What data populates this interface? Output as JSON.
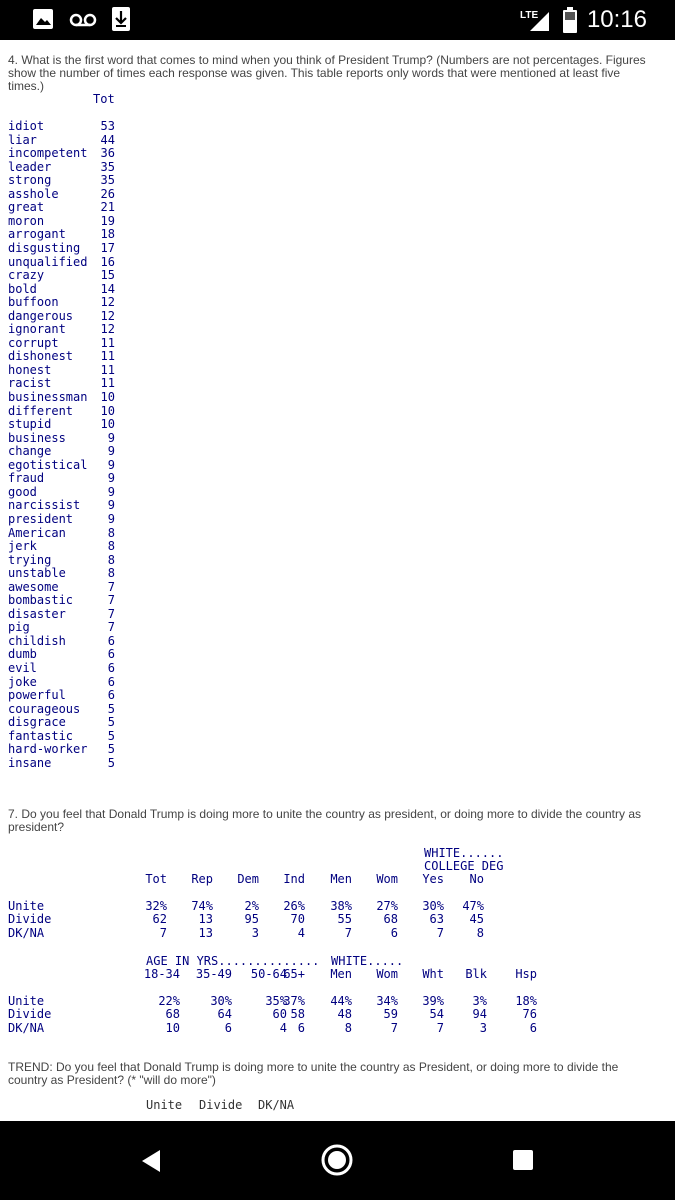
{
  "status_bar": {
    "time": "10:16",
    "network": "LTE",
    "icons": [
      "image-icon",
      "voicemail-icon",
      "download-icon",
      "signal-icon",
      "battery-icon"
    ]
  },
  "q4": {
    "text": "4. What is the first word that comes to mind when you think of President Trump? (Numbers are not percentages. Figures show the number of times each response was given. This table reports only words that were mentioned at least five times.)",
    "header": "Tot",
    "rows": [
      {
        "word": "idiot",
        "count": "53"
      },
      {
        "word": "liar",
        "count": "44"
      },
      {
        "word": "incompetent",
        "count": "36"
      },
      {
        "word": "leader",
        "count": "35"
      },
      {
        "word": "strong",
        "count": "35"
      },
      {
        "word": "asshole",
        "count": "26"
      },
      {
        "word": "great",
        "count": "21"
      },
      {
        "word": "moron",
        "count": "19"
      },
      {
        "word": "arrogant",
        "count": "18"
      },
      {
        "word": "disgusting",
        "count": "17"
      },
      {
        "word": "unqualified",
        "count": "16"
      },
      {
        "word": "crazy",
        "count": "15"
      },
      {
        "word": "bold",
        "count": "14"
      },
      {
        "word": "buffoon",
        "count": "12"
      },
      {
        "word": "dangerous",
        "count": "12"
      },
      {
        "word": "ignorant",
        "count": "12"
      },
      {
        "word": "corrupt",
        "count": "11"
      },
      {
        "word": "dishonest",
        "count": "11"
      },
      {
        "word": "honest",
        "count": "11"
      },
      {
        "word": "racist",
        "count": "11"
      },
      {
        "word": "businessman",
        "count": "10"
      },
      {
        "word": "different",
        "count": "10"
      },
      {
        "word": "stupid",
        "count": "10"
      },
      {
        "word": "business",
        "count": "9"
      },
      {
        "word": "change",
        "count": "9"
      },
      {
        "word": "egotistical",
        "count": "9"
      },
      {
        "word": "fraud",
        "count": "9"
      },
      {
        "word": "good",
        "count": "9"
      },
      {
        "word": "narcissist",
        "count": "9"
      },
      {
        "word": "president",
        "count": "9"
      },
      {
        "word": "American",
        "count": "8"
      },
      {
        "word": "jerk",
        "count": "8"
      },
      {
        "word": "trying",
        "count": "8"
      },
      {
        "word": "unstable",
        "count": "8"
      },
      {
        "word": "awesome",
        "count": "7"
      },
      {
        "word": "bombastic",
        "count": "7"
      },
      {
        "word": "disaster",
        "count": "7"
      },
      {
        "word": "pig",
        "count": "7"
      },
      {
        "word": "childish",
        "count": "6"
      },
      {
        "word": "dumb",
        "count": "6"
      },
      {
        "word": "evil",
        "count": "6"
      },
      {
        "word": "joke",
        "count": "6"
      },
      {
        "word": "powerful",
        "count": "6"
      },
      {
        "word": "courageous",
        "count": "5"
      },
      {
        "word": "disgrace",
        "count": "5"
      },
      {
        "word": "fantastic",
        "count": "5"
      },
      {
        "word": "hard-worker",
        "count": "5"
      },
      {
        "word": "insane",
        "count": "5"
      }
    ]
  },
  "q7": {
    "text": "7. Do you feel that Donald Trump is doing more to unite the country as president, or doing more to divide the country as president?",
    "table1": {
      "group_header_1": "WHITE......",
      "group_header_2": "COLLEGE DEG",
      "columns": [
        "Tot",
        "Rep",
        "Dem",
        "Ind",
        "Men",
        "Wom",
        "Yes",
        "No"
      ],
      "rows": [
        {
          "label": "Unite",
          "values": [
            "32%",
            "74%",
            "2%",
            "26%",
            "38%",
            "27%",
            "30%",
            "47%"
          ]
        },
        {
          "label": "Divide",
          "values": [
            "62",
            "13",
            "95",
            "70",
            "55",
            "68",
            "63",
            "45"
          ]
        },
        {
          "label": "DK/NA",
          "values": [
            "7",
            "13",
            "3",
            "4",
            "7",
            "6",
            "7",
            "8"
          ]
        }
      ]
    },
    "table2": {
      "group_header_age": "AGE IN YRS..............",
      "group_header_white": "WHITE.....",
      "columns": [
        "18-34",
        "35-49",
        "50-64",
        "65+",
        "Men",
        "Wom",
        "Wht",
        "Blk",
        "Hsp"
      ],
      "rows": [
        {
          "label": "Unite",
          "values": [
            "22%",
            "30%",
            "35%",
            "37%",
            "44%",
            "34%",
            "39%",
            "3%",
            "18%"
          ]
        },
        {
          "label": "Divide",
          "values": [
            "68",
            "64",
            "60",
            "58",
            "48",
            "59",
            "54",
            "94",
            "76"
          ]
        },
        {
          "label": "DK/NA",
          "values": [
            "10",
            "6",
            "4",
            "6",
            "8",
            "7",
            "7",
            "3",
            "6"
          ]
        }
      ]
    }
  },
  "trend": {
    "text": "TREND: Do you feel that Donald Trump is doing more to unite the country as President, or doing more to divide the country as President? (* \"will do more\")",
    "columns": [
      "Unite",
      "Divide",
      "DK/NA"
    ]
  },
  "nav_bar": {
    "buttons": [
      "back-button",
      "home-button",
      "recents-button"
    ]
  }
}
